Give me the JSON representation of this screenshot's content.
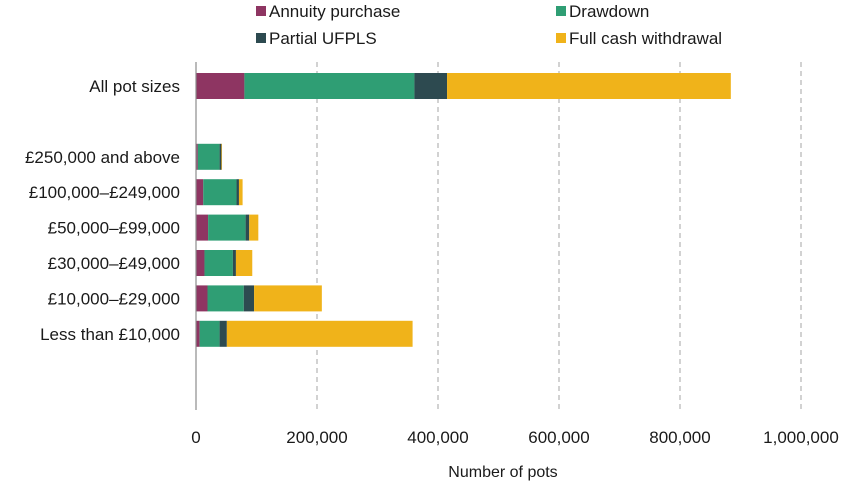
{
  "chart_data": {
    "type": "bar",
    "orientation": "horizontal",
    "stacked": true,
    "title": "",
    "xlabel": "Number  of pots",
    "ylabel": "",
    "xlim": [
      0,
      1000000
    ],
    "xticks": [
      0,
      200000,
      400000,
      600000,
      800000,
      1000000
    ],
    "xtick_labels": [
      "0",
      "200,000",
      "400,000",
      "600,000",
      "800,000",
      "1,000,000"
    ],
    "grid": "vertical dashed",
    "legend_position": "top",
    "categories": [
      "All pot sizes",
      "",
      "£250,000 and above",
      "£100,000–£249,000",
      "£50,000–£99,000",
      "£30,000–£49,000",
      "£10,000–£29,000",
      "Less than £10,000"
    ],
    "series": [
      {
        "name": "Annuity purchase",
        "color": "#8e3562",
        "values": [
          80000,
          null,
          3000,
          12000,
          20000,
          14000,
          19000,
          6000
        ]
      },
      {
        "name": "Drawdown",
        "color": "#2f9e74",
        "values": [
          281000,
          null,
          36000,
          55000,
          62000,
          47000,
          60000,
          33000
        ]
      },
      {
        "name": "Partial UFPLS",
        "color": "#2d4a50",
        "values": [
          54000,
          null,
          3000,
          4000,
          6000,
          5000,
          17000,
          12000
        ]
      },
      {
        "name": "Full cash withdrawal",
        "color": "#f0b31a",
        "values": [
          469000,
          null,
          1000,
          6000,
          15000,
          27000,
          112000,
          307000
        ]
      }
    ]
  }
}
